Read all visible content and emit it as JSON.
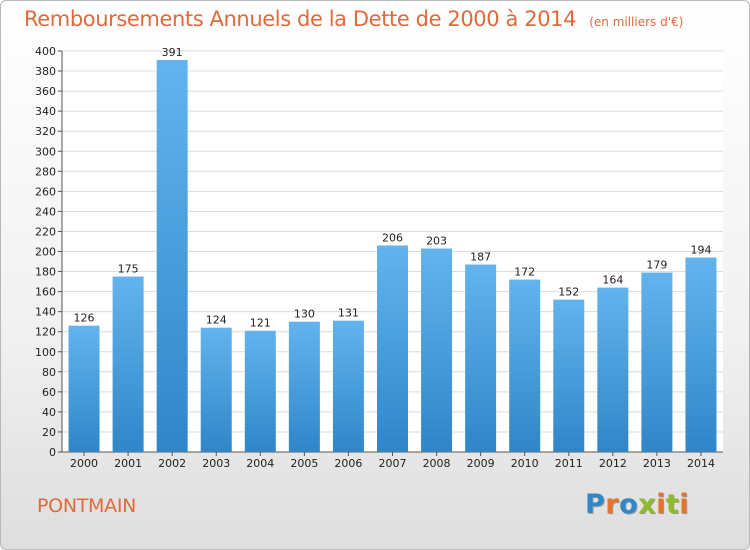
{
  "chart_data": {
    "type": "bar",
    "title": "Remboursements Annuels de la Dette de 2000 à 2014",
    "subtitle": "(en milliers d'€)",
    "categories": [
      "2000",
      "2001",
      "2002",
      "2003",
      "2004",
      "2005",
      "2006",
      "2007",
      "2008",
      "2009",
      "2010",
      "2011",
      "2012",
      "2013",
      "2014"
    ],
    "values": [
      126,
      175,
      391,
      124,
      121,
      130,
      131,
      206,
      203,
      187,
      172,
      152,
      164,
      179,
      194
    ],
    "ylim": [
      0,
      400
    ],
    "yticks": [
      0,
      20,
      40,
      60,
      80,
      100,
      120,
      140,
      160,
      180,
      200,
      220,
      240,
      260,
      280,
      300,
      320,
      340,
      360,
      380,
      400
    ],
    "grid": true,
    "bar_color": "#4a9fdd",
    "bar_color_light": "#62b4ee",
    "bar_color_dark": "#2f86c8"
  },
  "commune": "PONTMAIN",
  "logo": {
    "text": "Proxiti",
    "letter_colors": [
      "#2f86c8",
      "#e8732a",
      "#2f86c8",
      "#8dbb2c",
      "#e8732a",
      "#8dbb2c",
      "#e8732a"
    ]
  },
  "colors": {
    "accent": "#e06a3c",
    "grid": "#dcdcdc",
    "axis_text": "#222222"
  }
}
